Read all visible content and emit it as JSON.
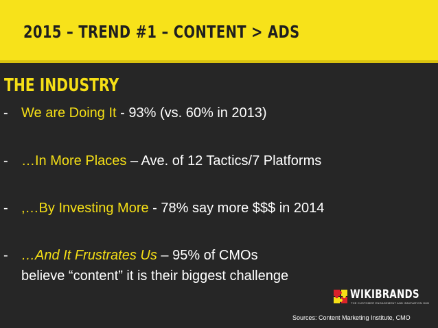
{
  "slide": {
    "title": "2015 – Trend #1 – Content > Ads",
    "section": "The Industry",
    "bullets": [
      {
        "dash": "-",
        "highlight": "We are Doing It",
        "rest": " - 93% (vs. 60% in 2013)"
      },
      {
        "dash": "-",
        "highlight": "…In More Places",
        "rest": " – Ave. of 12 Tactics/7 Platforms"
      },
      {
        "dash": "-",
        "highlight": ",…By Investing More",
        "rest": " - 78% say more $$$ in 2014"
      },
      {
        "dash": "-",
        "highlight": "…And It Frustrates Us",
        "rest": " – 95% of CMOs"
      }
    ],
    "bullet4_line2": "believe “content” it is their biggest challenge",
    "logo": {
      "name": "WIKIBRANDS",
      "tagline": "THE CUSTOMER ENGAGEMENT AND INNOVATION HUB",
      "icon": "puzzle-icon"
    },
    "sources": "Sources: Content Marketing Institute, CMO"
  },
  "colors": {
    "accent": "#f5df16",
    "header_bg": "#f7e21a",
    "background": "#262626",
    "text": "#ffffff",
    "logo_red": "#d9232a"
  }
}
